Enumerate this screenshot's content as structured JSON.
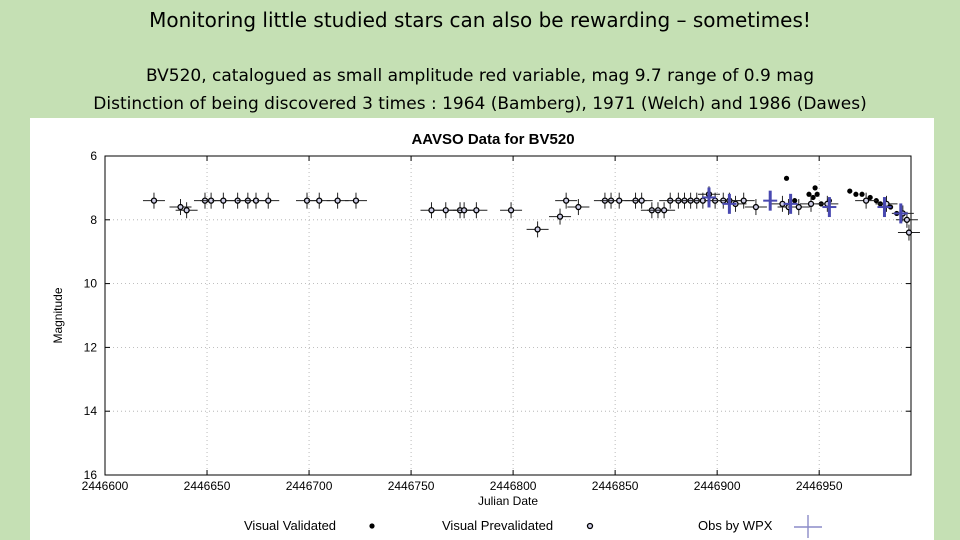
{
  "slide": {
    "title": "Monitoring little studied stars can also be rewarding – sometimes!",
    "subtitle1": "BV520, catalogued as small amplitude red variable, mag 9.7  range of 0.9 mag",
    "subtitle2": "Distinction of being discovered 3 times : 1964 (Bamberg), 1971 (Welch) and 1986 (Dawes)"
  },
  "colors": {
    "background": "#c5e0b4",
    "wpx": "#4848b0",
    "point": "#000000"
  },
  "chart_data": {
    "type": "scatter",
    "title": "AAVSO Data for BV520",
    "xlabel": "Julian Date",
    "ylabel": "Magnitude",
    "xlim": [
      2446600,
      2446995
    ],
    "ylim": [
      6,
      16
    ],
    "y_inverted": true,
    "grid": true,
    "xticks": [
      2446600,
      2446650,
      2446700,
      2446750,
      2446800,
      2446850,
      2446900,
      2446950
    ],
    "xtick_labels": [
      "2446600",
      "2446650",
      "2446700",
      "2446750",
      "2446800",
      "2446850",
      "2446900",
      "2446950"
    ],
    "yticks": [
      6,
      8,
      10,
      12,
      14,
      16
    ],
    "ytick_labels": [
      "6",
      "8",
      "10",
      "12",
      "14",
      "16"
    ],
    "legend": [
      {
        "label": "Visual Validated",
        "marker": "filled-dot"
      },
      {
        "label": "Visual Prevalidated",
        "marker": "open-dot"
      },
      {
        "label": "Obs by WPX",
        "marker": "cross"
      }
    ],
    "series": [
      {
        "name": "Visual Validated",
        "points": [
          [
            2446934,
            6.7
          ],
          [
            2446938,
            7.4
          ],
          [
            2446945,
            7.2
          ],
          [
            2446947,
            7.3
          ],
          [
            2446948,
            7.0
          ],
          [
            2446949,
            7.2
          ],
          [
            2446951,
            7.5
          ],
          [
            2446955,
            7.4
          ],
          [
            2446965,
            7.1
          ],
          [
            2446968,
            7.2
          ],
          [
            2446971,
            7.2
          ],
          [
            2446975,
            7.3
          ],
          [
            2446978,
            7.4
          ],
          [
            2446980,
            7.5
          ],
          [
            2446983,
            7.5
          ],
          [
            2446985,
            7.6
          ],
          [
            2446988,
            7.8
          ]
        ]
      },
      {
        "name": "Visual Prevalidated",
        "points": [
          [
            2446624,
            7.4
          ],
          [
            2446637,
            7.6
          ],
          [
            2446640,
            7.7
          ],
          [
            2446649,
            7.4
          ],
          [
            2446652,
            7.4
          ],
          [
            2446658,
            7.4
          ],
          [
            2446665,
            7.4
          ],
          [
            2446670,
            7.4
          ],
          [
            2446674,
            7.4
          ],
          [
            2446680,
            7.4
          ],
          [
            2446699,
            7.4
          ],
          [
            2446705,
            7.4
          ],
          [
            2446714,
            7.4
          ],
          [
            2446723,
            7.4
          ],
          [
            2446760,
            7.7
          ],
          [
            2446767,
            7.7
          ],
          [
            2446774,
            7.7
          ],
          [
            2446776,
            7.7
          ],
          [
            2446782,
            7.7
          ],
          [
            2446799,
            7.7
          ],
          [
            2446812,
            8.3
          ],
          [
            2446823,
            7.9
          ],
          [
            2446826,
            7.4
          ],
          [
            2446832,
            7.6
          ],
          [
            2446845,
            7.4
          ],
          [
            2446848,
            7.4
          ],
          [
            2446852,
            7.4
          ],
          [
            2446860,
            7.4
          ],
          [
            2446863,
            7.4
          ],
          [
            2446868,
            7.7
          ],
          [
            2446871,
            7.7
          ],
          [
            2446874,
            7.7
          ],
          [
            2446877,
            7.4
          ],
          [
            2446881,
            7.4
          ],
          [
            2446884,
            7.4
          ],
          [
            2446887,
            7.4
          ],
          [
            2446890,
            7.4
          ],
          [
            2446893,
            7.4
          ],
          [
            2446896,
            7.2
          ],
          [
            2446899,
            7.4
          ],
          [
            2446903,
            7.4
          ],
          [
            2446906,
            7.4
          ],
          [
            2446909,
            7.5
          ],
          [
            2446913,
            7.4
          ],
          [
            2446919,
            7.6
          ],
          [
            2446932,
            7.5
          ],
          [
            2446935,
            7.6
          ],
          [
            2446940,
            7.6
          ],
          [
            2446946,
            7.5
          ],
          [
            2446954,
            7.5
          ],
          [
            2446973,
            7.4
          ],
          [
            2446983,
            7.5
          ],
          [
            2446991,
            7.8
          ],
          [
            2446993,
            8.0
          ],
          [
            2446994,
            8.4
          ]
        ]
      },
      {
        "name": "Obs by WPX",
        "points": [
          [
            2446896,
            7.3
          ],
          [
            2446906,
            7.5
          ],
          [
            2446926,
            7.4
          ],
          [
            2446936,
            7.5
          ],
          [
            2446955,
            7.6
          ],
          [
            2446982,
            7.6
          ],
          [
            2446990,
            7.8
          ]
        ]
      }
    ]
  }
}
